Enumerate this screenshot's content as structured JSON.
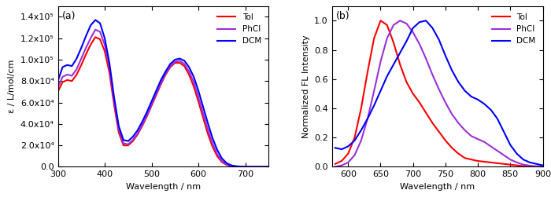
{
  "chart_data": [
    {
      "type": "line",
      "annotation": "(a)",
      "x_label": "Wavelength / nm",
      "y_label": "ε / L/mol/cm",
      "xlim": [
        300,
        750
      ],
      "xticks": [
        300,
        400,
        500,
        600,
        700
      ],
      "ylim": [
        0,
        150000
      ],
      "yticks": [
        {
          "value": 0,
          "label": "0.0"
        },
        {
          "value": 20000,
          "label": "2.0x10⁴"
        },
        {
          "value": 40000,
          "label": "4.0x10⁴"
        },
        {
          "value": 60000,
          "label": "6.0x10⁴"
        },
        {
          "value": 80000,
          "label": "8.0x10⁴"
        },
        {
          "value": 100000,
          "label": "1.0x10⁵"
        },
        {
          "value": 120000,
          "label": "1.2x10⁵"
        },
        {
          "value": 140000,
          "label": "1.4x10⁵"
        }
      ],
      "legend": "upper right",
      "x": [
        300,
        310,
        320,
        330,
        340,
        350,
        360,
        370,
        380,
        390,
        400,
        410,
        420,
        430,
        440,
        450,
        460,
        470,
        480,
        490,
        500,
        510,
        520,
        530,
        540,
        550,
        560,
        570,
        580,
        590,
        600,
        610,
        620,
        630,
        640,
        650,
        660,
        670,
        680,
        690,
        700,
        710,
        720,
        730,
        740,
        750
      ],
      "series": [
        {
          "name": "Tol",
          "color": "#ff0000",
          "values": [
            70000,
            79000,
            81000,
            80000,
            86000,
            95000,
            105000,
            114000,
            121000,
            119000,
            108000,
            88000,
            58000,
            32000,
            20000,
            20000,
            24000,
            30000,
            38000,
            47000,
            57000,
            67000,
            77000,
            86000,
            93000,
            97000,
            97000,
            94000,
            86000,
            75000,
            61000,
            46000,
            31000,
            19000,
            10000,
            4500,
            1800,
            700,
            300,
            100,
            0,
            0,
            0,
            0,
            0,
            0
          ]
        },
        {
          "name": "PhCl",
          "color": "#9b30d9",
          "values": [
            74000,
            84000,
            86000,
            85000,
            91000,
            101000,
            111000,
            120000,
            128000,
            126000,
            114000,
            93000,
            62000,
            35000,
            22000,
            21000,
            25000,
            31000,
            39000,
            48000,
            58000,
            68000,
            78000,
            87000,
            94000,
            98000,
            99000,
            96000,
            89000,
            79000,
            65000,
            50000,
            35000,
            22000,
            12000,
            5500,
            2200,
            900,
            400,
            150,
            0,
            0,
            0,
            0,
            0,
            0
          ]
        },
        {
          "name": "DCM",
          "color": "#0000ff",
          "values": [
            80000,
            93000,
            95000,
            94000,
            101000,
            111000,
            122000,
            132000,
            137000,
            134000,
            120000,
            97000,
            65000,
            38000,
            25000,
            24000,
            28000,
            34000,
            42000,
            51000,
            61000,
            71000,
            81000,
            89000,
            96000,
            100000,
            101000,
            99000,
            93000,
            84000,
            71000,
            56000,
            41000,
            27000,
            16000,
            8000,
            3500,
            1400,
            600,
            200,
            0,
            0,
            0,
            0,
            0,
            0
          ]
        }
      ]
    },
    {
      "type": "line",
      "annotation": "(b)",
      "x_label": "Wavelength / nm",
      "y_label": "Normalized FL Intensity",
      "xlim": [
        575,
        900
      ],
      "xticks": [
        600,
        650,
        700,
        750,
        800,
        850,
        900
      ],
      "ylim": [
        0,
        1.1
      ],
      "yticks": [
        0.0,
        0.2,
        0.4,
        0.6,
        0.8,
        1.0
      ],
      "legend": "upper right",
      "x": [
        580,
        590,
        600,
        610,
        620,
        630,
        640,
        650,
        660,
        670,
        680,
        690,
        700,
        710,
        720,
        730,
        740,
        750,
        760,
        770,
        780,
        790,
        800,
        810,
        820,
        830,
        840,
        850,
        860,
        870,
        880,
        890,
        900
      ],
      "series": [
        {
          "name": "Tol",
          "color": "#ff0000",
          "values": [
            0.02,
            0.04,
            0.09,
            0.2,
            0.4,
            0.65,
            0.88,
            1.0,
            0.97,
            0.85,
            0.7,
            0.58,
            0.5,
            0.44,
            0.37,
            0.3,
            0.24,
            0.18,
            0.13,
            0.09,
            0.06,
            0.05,
            0.04,
            0.035,
            0.03,
            0.025,
            0.02,
            0.015,
            0.01,
            0.005,
            0.003,
            0.002,
            0.0
          ]
        },
        {
          "name": "PhCl",
          "color": "#9b30d9",
          "values": [
            0.0,
            0.01,
            0.03,
            0.08,
            0.18,
            0.33,
            0.52,
            0.72,
            0.88,
            0.97,
            1.0,
            0.98,
            0.92,
            0.84,
            0.74,
            0.63,
            0.53,
            0.44,
            0.36,
            0.3,
            0.25,
            0.21,
            0.19,
            0.17,
            0.14,
            0.11,
            0.08,
            0.05,
            0.03,
            0.015,
            0.008,
            0.004,
            0.002
          ]
        },
        {
          "name": "DCM",
          "color": "#0000ff",
          "values": [
            0.13,
            0.12,
            0.14,
            0.18,
            0.25,
            0.33,
            0.42,
            0.52,
            0.62,
            0.7,
            0.78,
            0.86,
            0.95,
            0.99,
            1.0,
            0.95,
            0.87,
            0.76,
            0.66,
            0.58,
            0.52,
            0.48,
            0.46,
            0.43,
            0.39,
            0.33,
            0.24,
            0.15,
            0.09,
            0.05,
            0.03,
            0.02,
            0.01
          ]
        }
      ]
    }
  ]
}
